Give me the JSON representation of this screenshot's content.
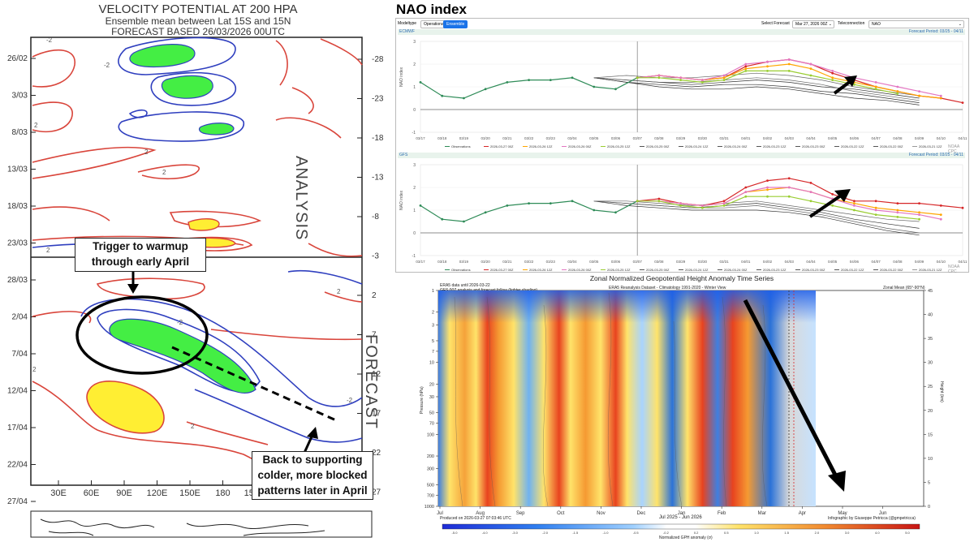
{
  "vp": {
    "title": "VELOCITY POTENTIAL AT 200 HPA",
    "subtitle": "Ensemble mean between  Lat 15S and 15N",
    "forecast_line": "FORECAST  BASED 26/03/2026 00UTC",
    "left_ticks": [
      "26/02",
      "3/03",
      "8/03",
      "13/03",
      "18/03",
      "23/03",
      "28/03",
      "2/04",
      "7/04",
      "12/04",
      "17/04",
      "22/04",
      "27/04"
    ],
    "right_ticks": [
      "-28",
      "-23",
      "-18",
      "-13",
      "-8",
      "-3",
      "2",
      "7",
      "12",
      "17",
      "22",
      "27"
    ],
    "x_ticks": [
      "30E",
      "60E",
      "90E",
      "120E",
      "150E",
      "180",
      "150W",
      "12"
    ],
    "analysis_label": "ANALYSIS",
    "forecast_label": "FORECAST",
    "contour_label": "2",
    "callout_top": [
      "Trigger to warmup",
      "through early April"
    ],
    "callout_bottom": [
      "Back to supporting",
      "colder, more blocked",
      "patterns later in April"
    ]
  },
  "nao": {
    "title": "NAO index",
    "modeltype_label": "Modeltype",
    "btn_operational": "Operational",
    "btn_ensemble": "Ensemble",
    "select_forecast_label": "Select Forecast",
    "select_forecast_value": "Mar 27, 2026 00Z",
    "teleconnection_label": "Teleconnection",
    "teleconnection_value": "NAO",
    "panels": [
      {
        "model": "ECMWF",
        "period": "Forecast Period: 03/25 - 04/11",
        "ylabel": "NAO index"
      },
      {
        "model": "GFS",
        "period": "Forecast Period: 03/25 - 04/11",
        "ylabel": "NAO index"
      }
    ],
    "watermark": "NOAA CPC",
    "x_dates": [
      "03/17",
      "03/18",
      "03/19",
      "03/20",
      "03/21",
      "03/22",
      "03/23",
      "03/04",
      "03/05",
      "03/06",
      "03/07",
      "03/08",
      "03/29",
      "03/30",
      "03/31",
      "04/01",
      "04/02",
      "04/03",
      "04/04",
      "04/05",
      "04/06",
      "04/07",
      "04/08",
      "04/09",
      "04/10",
      "04/11"
    ],
    "legend": [
      {
        "label": "Observations",
        "color": "#2e8b57"
      },
      {
        "label": "2026-03-27 00Z",
        "color": "#d62728"
      },
      {
        "label": "2026-03-26 12Z",
        "color": "#ffa500"
      },
      {
        "label": "2026-03-26 00Z",
        "color": "#e377c2"
      },
      {
        "label": "2026-03-25 12Z",
        "color": "#9acd32"
      },
      {
        "label": "2026-03-25 00Z",
        "color": "#555555"
      },
      {
        "label": "2026-03-24 12Z",
        "color": "#555555"
      },
      {
        "label": "2026-03-24 00Z",
        "color": "#555555"
      },
      {
        "label": "2026-03-23 12Z",
        "color": "#555555"
      },
      {
        "label": "2026-03-23 00Z",
        "color": "#555555"
      },
      {
        "label": "2026-03-22 12Z",
        "color": "#555555"
      },
      {
        "label": "2026-03-22 00Z",
        "color": "#555555"
      },
      {
        "label": "2026-03-21 12Z",
        "color": "#999999"
      }
    ]
  },
  "zonal": {
    "title": "Zonal Normalized Geopotential Height Anomaly Time Series",
    "header_left_1": "ERA5 data until 2026-03-22",
    "header_left_2": "GFS 00Z analysis and forecast follow (lighter shading)",
    "header_center": "ERA5 Reanalysis Dataset - Climatology 1991-2020 - Winter View",
    "header_right": "Zonal Mean (65°-90°N)",
    "ylabel_left": "Pressure (hPa)",
    "ylabel_right": "Height (km)",
    "p_ticks": [
      "1",
      "2",
      "3",
      "5",
      "7",
      "10",
      "20",
      "30",
      "50",
      "70",
      "100",
      "200",
      "300",
      "500",
      "700",
      "1000"
    ],
    "km_ticks": [
      "45",
      "40",
      "35",
      "30",
      "25",
      "20",
      "15",
      "10",
      "5",
      "0"
    ],
    "months": [
      "Jul",
      "Aug",
      "Sep",
      "Oct",
      "Nov",
      "Dec",
      "Jan",
      "Feb",
      "Mar",
      "Apr",
      "May",
      "Jun"
    ],
    "period_label": "Jul 2025 - Jun 2026",
    "produced": "Produced on 2026-03-27 07:03:46 UTC",
    "credit": "Infographic by Giuseppe Petricca (@gmpetricca)",
    "cbar_ticks": [
      "-5.0",
      "-4.0",
      "-3.0",
      "-2.0",
      "-1.5",
      "-1.0",
      "-0.5",
      "-0.2",
      "0.2",
      "0.5",
      "1.0",
      "1.5",
      "2.0",
      "3.0",
      "4.0",
      "5.0"
    ],
    "cbar_label": "Normalized GPH anomaly (σ)"
  },
  "chart_data": [
    {
      "type": "line",
      "title": "NAO index",
      "model": "ECMWF",
      "x": [
        "03/17",
        "03/18",
        "03/19",
        "03/20",
        "03/21",
        "03/22",
        "03/23",
        "03/04",
        "03/05",
        "03/06",
        "03/07",
        "03/08",
        "03/29",
        "03/30",
        "03/31",
        "04/01",
        "04/02",
        "04/03",
        "04/04",
        "04/05",
        "04/06",
        "04/07",
        "04/08",
        "04/09",
        "04/10",
        "04/11"
      ],
      "ylim": [
        -1,
        3
      ],
      "series": [
        {
          "name": "Observations",
          "values": [
            1.2,
            0.6,
            0.5,
            0.9,
            1.2,
            1.3,
            1.3,
            1.4,
            1.0,
            0.9,
            1.4,
            null,
            null,
            null,
            null,
            null,
            null,
            null,
            null,
            null,
            null,
            null,
            null,
            null,
            null,
            null
          ]
        },
        {
          "name": "2026-03-27 00Z",
          "values": [
            null,
            null,
            null,
            null,
            null,
            null,
            null,
            null,
            null,
            null,
            1.4,
            1.5,
            1.4,
            1.3,
            1.4,
            1.9,
            2.1,
            2.2,
            2.0,
            1.6,
            1.3,
            1.0,
            0.8,
            0.6,
            0.5,
            0.3
          ]
        },
        {
          "name": "2026-03-26 12Z",
          "values": [
            null,
            null,
            null,
            null,
            null,
            null,
            null,
            null,
            null,
            null,
            1.4,
            1.5,
            1.4,
            1.3,
            1.4,
            1.8,
            1.9,
            2.0,
            1.8,
            1.4,
            1.2,
            1.0,
            0.8,
            0.6,
            0.5,
            null
          ]
        },
        {
          "name": "2026-03-26 00Z",
          "values": [
            null,
            null,
            null,
            null,
            null,
            null,
            null,
            null,
            null,
            null,
            1.4,
            1.5,
            1.4,
            1.3,
            1.5,
            2.0,
            2.1,
            2.2,
            2.0,
            1.7,
            1.4,
            1.2,
            1.0,
            0.8,
            0.6,
            null
          ]
        },
        {
          "name": "2026-03-25 12Z",
          "values": [
            null,
            null,
            null,
            null,
            null,
            null,
            null,
            null,
            null,
            null,
            1.4,
            1.4,
            1.3,
            1.2,
            1.3,
            1.7,
            1.7,
            1.7,
            1.5,
            1.3,
            1.1,
            0.9,
            0.7,
            null,
            null,
            null
          ]
        }
      ]
    },
    {
      "type": "line",
      "title": "NAO index",
      "model": "GFS",
      "x": [
        "03/17",
        "03/18",
        "03/19",
        "03/20",
        "03/21",
        "03/22",
        "03/23",
        "03/04",
        "03/05",
        "03/06",
        "03/07",
        "03/08",
        "03/29",
        "03/30",
        "03/31",
        "04/01",
        "04/02",
        "04/03",
        "04/04",
        "04/05",
        "04/06",
        "04/07",
        "04/08",
        "04/09",
        "04/10",
        "04/11"
      ],
      "ylim": [
        -1,
        3
      ],
      "series": [
        {
          "name": "Observations",
          "values": [
            1.2,
            0.6,
            0.5,
            0.9,
            1.2,
            1.3,
            1.3,
            1.4,
            1.0,
            0.9,
            1.4,
            null,
            null,
            null,
            null,
            null,
            null,
            null,
            null,
            null,
            null,
            null,
            null,
            null,
            null,
            null
          ]
        },
        {
          "name": "2026-03-27 00Z",
          "values": [
            null,
            null,
            null,
            null,
            null,
            null,
            null,
            null,
            null,
            null,
            1.4,
            1.5,
            1.3,
            1.2,
            1.4,
            2.0,
            2.3,
            2.4,
            2.2,
            1.7,
            1.4,
            1.4,
            1.3,
            1.3,
            1.2,
            1.1
          ]
        },
        {
          "name": "2026-03-26 12Z",
          "values": [
            null,
            null,
            null,
            null,
            null,
            null,
            null,
            null,
            null,
            null,
            1.4,
            1.4,
            1.3,
            1.2,
            1.3,
            1.8,
            1.9,
            2.0,
            1.8,
            1.5,
            1.3,
            1.1,
            1.0,
            0.9,
            0.8,
            null
          ]
        },
        {
          "name": "2026-03-26 00Z",
          "values": [
            null,
            null,
            null,
            null,
            null,
            null,
            null,
            null,
            null,
            null,
            1.4,
            1.4,
            1.3,
            1.2,
            1.3,
            1.8,
            2.0,
            2.0,
            1.8,
            1.5,
            1.2,
            1.0,
            0.9,
            0.8,
            0.6,
            null
          ]
        },
        {
          "name": "2026-03-25 12Z",
          "values": [
            null,
            null,
            null,
            null,
            null,
            null,
            null,
            null,
            null,
            null,
            1.4,
            1.4,
            1.2,
            1.1,
            1.2,
            1.6,
            1.6,
            1.6,
            1.4,
            1.2,
            1.0,
            0.8,
            0.7,
            0.6,
            null,
            null
          ]
        }
      ]
    }
  ]
}
